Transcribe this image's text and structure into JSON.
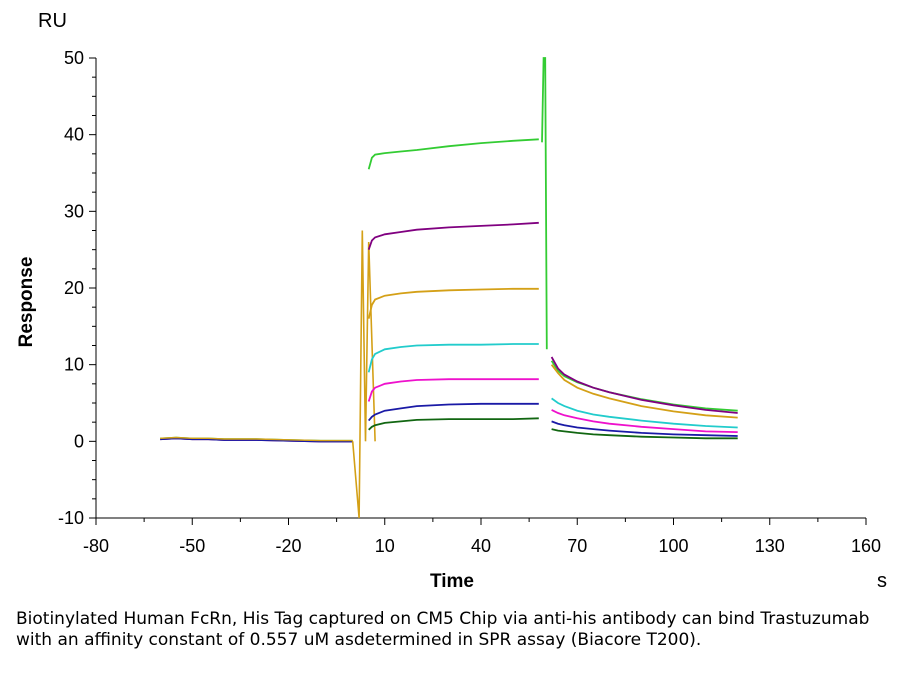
{
  "chart_data": {
    "type": "line",
    "title": "",
    "xlabel": "Time",
    "ylabel": "Response",
    "x_unit": "s",
    "y_unit": "RU",
    "xlim": [
      -80,
      160
    ],
    "ylim": [
      -10,
      50
    ],
    "x_ticks": [
      -80,
      -50,
      -20,
      10,
      40,
      70,
      100,
      130,
      160
    ],
    "y_ticks": [
      -10,
      0,
      10,
      20,
      30,
      40,
      50
    ],
    "grid": false,
    "baseline": {
      "x": [
        -60,
        -55,
        -50,
        -45,
        -40,
        -30,
        -20,
        -10,
        0
      ],
      "y": [
        0.3,
        0.4,
        0.3,
        0.3,
        0.2,
        0.2,
        0.1,
        0.0,
        0.0
      ]
    },
    "injection_spike": {
      "x": [
        0,
        2,
        3,
        4,
        5,
        7
      ],
      "y": [
        0,
        -10,
        27.5,
        0,
        26,
        0
      ]
    },
    "dissociation_spike": {
      "x": [
        59,
        59.5,
        60,
        60.5
      ],
      "y": [
        39,
        50,
        50,
        12
      ]
    },
    "series": [
      {
        "color": "#33cc33",
        "association": {
          "x": [
            5,
            6,
            7,
            10,
            15,
            20,
            30,
            40,
            50,
            58
          ],
          "y": [
            35.5,
            37,
            37.4,
            37.6,
            37.8,
            38,
            38.5,
            38.9,
            39.2,
            39.4
          ]
        },
        "dissociation": {
          "x": [
            62,
            64,
            66,
            70,
            75,
            80,
            90,
            100,
            110,
            120
          ],
          "y": [
            10.5,
            9.2,
            8.5,
            7.7,
            7,
            6.4,
            5.5,
            4.8,
            4.3,
            4.0
          ]
        }
      },
      {
        "color": "#800080",
        "association": {
          "x": [
            5,
            6,
            7,
            10,
            15,
            20,
            30,
            40,
            50,
            58
          ],
          "y": [
            25,
            26.2,
            26.6,
            27,
            27.3,
            27.6,
            27.9,
            28.1,
            28.3,
            28.5
          ]
        },
        "dissociation": {
          "x": [
            62,
            64,
            66,
            70,
            75,
            80,
            90,
            100,
            110,
            120
          ],
          "y": [
            11,
            9.5,
            8.7,
            7.8,
            7,
            6.4,
            5.4,
            4.7,
            4.1,
            3.7
          ]
        }
      },
      {
        "color": "#d4a017",
        "association": {
          "x": [
            5,
            6,
            7,
            10,
            15,
            20,
            30,
            40,
            50,
            58
          ],
          "y": [
            16,
            17.8,
            18.5,
            19,
            19.3,
            19.5,
            19.7,
            19.8,
            19.9,
            19.9
          ]
        },
        "dissociation": {
          "x": [
            62,
            64,
            66,
            70,
            75,
            80,
            90,
            100,
            110,
            120
          ],
          "y": [
            10,
            8.9,
            8,
            7,
            6.2,
            5.6,
            4.6,
            3.9,
            3.4,
            3.1
          ]
        }
      },
      {
        "color": "#22cccc",
        "association": {
          "x": [
            5,
            6,
            7,
            10,
            15,
            20,
            30,
            40,
            50,
            58
          ],
          "y": [
            9,
            10.7,
            11.4,
            12,
            12.3,
            12.5,
            12.6,
            12.6,
            12.7,
            12.7
          ]
        },
        "dissociation": {
          "x": [
            62,
            64,
            66,
            70,
            75,
            80,
            90,
            100,
            110,
            120
          ],
          "y": [
            5.6,
            5,
            4.6,
            4,
            3.5,
            3.2,
            2.7,
            2.3,
            2,
            1.8
          ]
        }
      },
      {
        "color": "#ee11cc",
        "association": {
          "x": [
            5,
            6,
            7,
            10,
            15,
            20,
            30,
            40,
            50,
            58
          ],
          "y": [
            5.2,
            6.5,
            7,
            7.5,
            7.8,
            8,
            8.1,
            8.1,
            8.1,
            8.1
          ]
        },
        "dissociation": {
          "x": [
            62,
            64,
            66,
            70,
            75,
            80,
            90,
            100,
            110,
            120
          ],
          "y": [
            4.1,
            3.7,
            3.4,
            3,
            2.6,
            2.3,
            1.9,
            1.6,
            1.3,
            1.2
          ]
        }
      },
      {
        "color": "#1a1aa6",
        "association": {
          "x": [
            5,
            6,
            7,
            10,
            15,
            20,
            30,
            40,
            50,
            58
          ],
          "y": [
            2.7,
            3.2,
            3.5,
            4,
            4.3,
            4.6,
            4.8,
            4.9,
            4.9,
            4.9
          ]
        },
        "dissociation": {
          "x": [
            62,
            64,
            66,
            70,
            75,
            80,
            90,
            100,
            110,
            120
          ],
          "y": [
            2.6,
            2.3,
            2.1,
            1.8,
            1.6,
            1.4,
            1.1,
            0.9,
            0.8,
            0.7
          ]
        }
      },
      {
        "color": "#116611",
        "association": {
          "x": [
            5,
            6,
            7,
            10,
            15,
            20,
            30,
            40,
            50,
            58
          ],
          "y": [
            1.5,
            1.9,
            2.1,
            2.4,
            2.6,
            2.8,
            2.9,
            2.9,
            2.9,
            3.0
          ]
        },
        "dissociation": {
          "x": [
            62,
            64,
            66,
            70,
            75,
            80,
            90,
            100,
            110,
            120
          ],
          "y": [
            1.6,
            1.4,
            1.3,
            1.1,
            0.9,
            0.8,
            0.6,
            0.5,
            0.4,
            0.4
          ]
        }
      }
    ]
  },
  "caption": "Biotinylated Human FcRn, His Tag captured on CM5 Chip via anti-his antibody can bind Trastuzumab with an affinity constant of 0.557 uM asdetermined in SPR assay (Biacore T200)."
}
